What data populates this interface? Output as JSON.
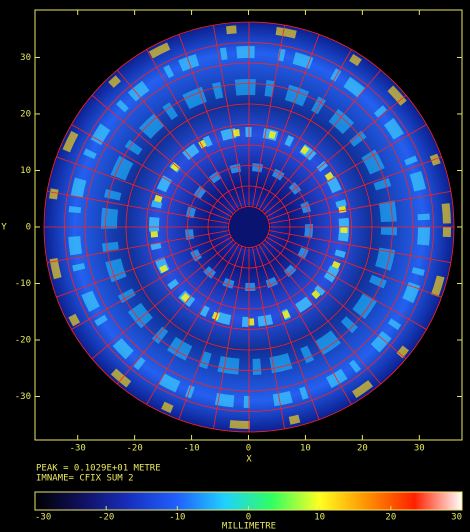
{
  "chart_data": {
    "type": "image",
    "x_label": "X",
    "y_label": "Y",
    "xlim": [
      -37.5,
      37.5
    ],
    "ylim": [
      -37.7,
      38.4
    ],
    "xticks": [
      -30,
      -20,
      -10,
      0,
      10,
      20,
      30
    ],
    "yticks": [
      -30,
      -20,
      -10,
      0,
      10,
      20,
      30
    ],
    "annotations": [
      "PEAK =  0.1029E+01 METRE",
      "IMNAME= CFIX SUM 2"
    ],
    "colorbar": {
      "label": "MILLIMETRE",
      "lim": [
        -30,
        30
      ],
      "ticks": [
        -30,
        -20,
        -10,
        0,
        10,
        20,
        30
      ],
      "colormap": [
        "#000000",
        "#101060",
        "#1830c0",
        "#2060ff",
        "#20d0ff",
        "#30ff60",
        "#ffff20",
        "#ff9000",
        "#ff2000",
        "#ffffff"
      ]
    }
  }
}
